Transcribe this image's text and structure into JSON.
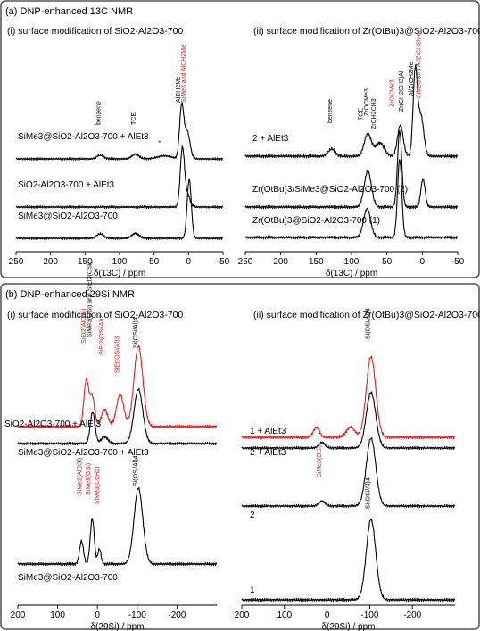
{
  "colors": {
    "black": "#000000",
    "red": "#e0201e",
    "frame": "#333333"
  },
  "chart_data": [
    {
      "type": "line",
      "panel": "a-i",
      "panel_title": "(a) DNP-enhanced 13C NMR",
      "title": "(i) surface modification of SiO2-Al2O3-700",
      "xlabel": "δ(13C) / ppm",
      "xlim": [
        250,
        -50
      ],
      "xticks": [
        250,
        200,
        150,
        100,
        50,
        0,
        -50
      ],
      "annotations": [
        "benzene",
        "TCE",
        "*",
        "AlCH2Me",
        "SiMe3 and AlCH2Me"
      ],
      "series": [
        {
          "name": "SiMe3@SiO2-Al2O3-700 + AlEt3",
          "color": "#000000",
          "peaks": [
            {
              "x": 128,
              "h": 0.06,
              "w": 5
            },
            {
              "x": 77,
              "h": 0.08,
              "w": 5
            },
            {
              "x": 35,
              "h": 0.05,
              "w": 10
            },
            {
              "x": 10,
              "h": 0.85,
              "w": 3
            },
            {
              "x": 2,
              "h": 0.45,
              "w": 4
            }
          ]
        },
        {
          "name": "SiO2-Al2O3-700 + AlEt3",
          "color": "#000000",
          "peaks": [
            {
              "x": 9,
              "h": 0.92,
              "w": 3
            },
            {
              "x": 2,
              "h": 0.2,
              "w": 4
            }
          ]
        },
        {
          "name": "SiMe3@SiO2-Al2O3-700",
          "color": "#000000",
          "peaks": [
            {
              "x": 128,
              "h": 0.07,
              "w": 5
            },
            {
              "x": 77,
              "h": 0.08,
              "w": 5
            },
            {
              "x": -1,
              "h": 0.92,
              "w": 3
            }
          ]
        }
      ]
    },
    {
      "type": "line",
      "panel": "a-ii",
      "title": "(ii) surface modification of Zr(OtBu)3@SiO2-Al2O3-700",
      "xlabel": "δ(13C) / ppm",
      "xlim": [
        250,
        -50
      ],
      "xticks": [
        250,
        200,
        150,
        100,
        50,
        0,
        -50
      ],
      "annotations": [
        "benzene",
        "TCE",
        "ZrOCMe3",
        "ZrCH2CH3",
        "ZrOCMe3",
        "Zr(CH2CH3)Al",
        "Al/ZrCH2Me",
        "SiMe3 and Al/ZrCH2Me"
      ],
      "series": [
        {
          "name": "2 + AlEt3",
          "color": "#000000",
          "peaks": [
            {
              "x": 128,
              "h": 0.08,
              "w": 5
            },
            {
              "x": 77,
              "h": 0.25,
              "w": 5
            },
            {
              "x": 60,
              "h": 0.15,
              "w": 6
            },
            {
              "x": 31,
              "h": 0.35,
              "w": 4
            },
            {
              "x": 10,
              "h": 0.95,
              "w": 3
            },
            {
              "x": 2,
              "h": 0.45,
              "w": 4
            }
          ]
        },
        {
          "name": "Zr(OtBu)3/SiMe3@SiO2-Al2O3-700 (2)",
          "color": "#000000",
          "peaks": [
            {
              "x": 77,
              "h": 0.45,
              "w": 5
            },
            {
              "x": 32,
              "h": 0.95,
              "w": 3
            },
            {
              "x": -1,
              "h": 0.35,
              "w": 3
            }
          ]
        },
        {
          "name": "Zr(OtBu)3@SiO2-Al2O3-700 (1)",
          "color": "#000000",
          "peaks": [
            {
              "x": 78,
              "h": 0.35,
              "w": 5
            },
            {
              "x": 32,
              "h": 0.95,
              "w": 3
            }
          ]
        }
      ]
    },
    {
      "type": "line",
      "panel": "b-i",
      "panel_title": "(b) DNP-enhanced 29Si NMR",
      "title": "(i) surface modification of SiO2-Al2O3-700",
      "xlabel": "δ(29Si) / ppm",
      "xlim": [
        200,
        -300
      ],
      "xticks": [
        200,
        100,
        0,
        -100,
        -200
      ],
      "annotations": [
        "SiEt2(AlOSi)",
        "SiMe3(OSi) and SiEt3(OSi)",
        "SiEt2(OSi/Al)2",
        "SiEt(OSi/Al)3",
        "Si(OSi/Al)4",
        "SiMe2(AlOSi)",
        "SiMe3(OSi)",
        "SiMe3(C6H5)",
        "Si(OSi/Al)4"
      ],
      "series": [
        {
          "name": "SiO2-Al2O3-700 + AlEt3",
          "color": "#e0201e",
          "peaks": [
            {
              "x": 28,
              "h": 0.55,
              "w": 6
            },
            {
              "x": 13,
              "h": 0.35,
              "w": 6
            },
            {
              "x": -18,
              "h": 0.2,
              "w": 8
            },
            {
              "x": -57,
              "h": 0.38,
              "w": 9
            },
            {
              "x": -103,
              "h": 0.95,
              "w": 11
            }
          ]
        },
        {
          "name": "SiMe3@SiO2-Al2O3-700 + AlEt3",
          "color": "#000000",
          "peaks": [
            {
              "x": 12,
              "h": 0.45,
              "w": 6
            },
            {
              "x": -18,
              "h": 0.1,
              "w": 8
            },
            {
              "x": -103,
              "h": 0.78,
              "w": 11
            }
          ]
        },
        {
          "name": "SiMe3@SiO2-Al2O3-700",
          "color": "#000000",
          "peaks": [
            {
              "x": 40,
              "h": 0.3,
              "w": 5
            },
            {
              "x": 13,
              "h": 0.6,
              "w": 5
            },
            {
              "x": -5,
              "h": 0.2,
              "w": 4
            },
            {
              "x": -103,
              "h": 1.0,
              "w": 11
            }
          ]
        }
      ]
    },
    {
      "type": "line",
      "panel": "b-ii",
      "title": "(ii) surface modification of Zr(OtBu)3@SiO2-Al2O3-700",
      "xlabel": "δ(29Si) / ppm",
      "xlim": [
        200,
        -300
      ],
      "xticks": [
        200,
        100,
        0,
        -100,
        -200
      ],
      "annotations": [
        "Si(OSi/Al)4",
        "SiMe3(OSi)",
        "Si(OSi/Al)4"
      ],
      "series": [
        {
          "name": "1 + AlEt3",
          "color": "#e0201e",
          "peaks": [
            {
              "x": 25,
              "h": 0.12,
              "w": 7
            },
            {
              "x": -55,
              "h": 0.12,
              "w": 10
            },
            {
              "x": -103,
              "h": 0.95,
              "w": 11
            }
          ]
        },
        {
          "name": "2 + AlEt3",
          "color": "#000000",
          "peaks": [
            {
              "x": 12,
              "h": 0.08,
              "w": 7
            },
            {
              "x": -103,
              "h": 0.78,
              "w": 11
            }
          ]
        },
        {
          "name": "2",
          "color": "#000000",
          "peaks": [
            {
              "x": 12,
              "h": 0.07,
              "w": 7
            },
            {
              "x": -103,
              "h": 0.95,
              "w": 11
            }
          ]
        },
        {
          "name": "1",
          "color": "#000000",
          "peaks": [
            {
              "x": -103,
              "h": 1.0,
              "w": 11
            }
          ]
        }
      ]
    }
  ]
}
